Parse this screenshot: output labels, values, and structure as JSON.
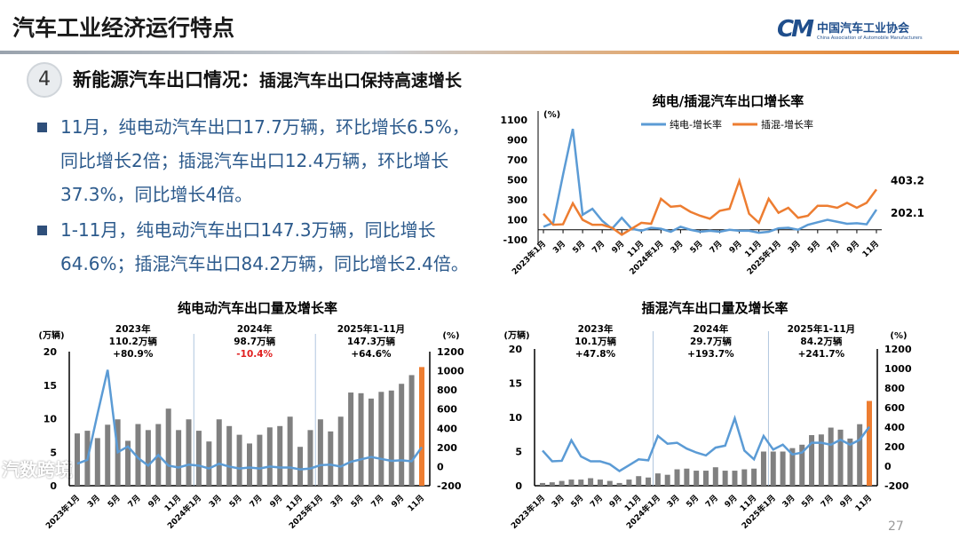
{
  "header": {
    "title": "汽车工业经济运行特点",
    "logo_cn": "中国汽车工业协会",
    "logo_en": "China Association of Automobile Manufacturers",
    "logo_mark": "CM"
  },
  "section": {
    "number": "4",
    "heading_bold": "新能源汽车出口情况：",
    "heading_rest": "插混汽车出口保持高速增长"
  },
  "bullets": [
    "11月，纯电动汽车出口17.7万辆，环比增长6.5%，同比增长2倍；插混汽车出口12.4万辆，环比增长37.3%，同比增长4倍。",
    "1-11月，纯电动汽车出口147.3万辆，同比增长64.6%；插混汽车出口84.2万辆，同比增长2.4倍。"
  ],
  "page_number": "27",
  "watermark": "汽数跨境",
  "colors": {
    "bar": "#808080",
    "bar_highlight": "#ed7d31",
    "bev_line": "#5b9bd5",
    "phev_line": "#ed7d31",
    "negative": "#e02020"
  },
  "chart_data": [
    {
      "id": "growth",
      "type": "line",
      "title": "纯电/插混汽车出口增长率",
      "yunit": "(%)",
      "ylim": [
        -100,
        1100
      ],
      "yticks": [
        -100,
        100,
        300,
        500,
        700,
        900,
        1100
      ],
      "x_tick_labels": [
        "2023年1月",
        "3月",
        "5月",
        "7月",
        "9月",
        "11月",
        "2024年1月",
        "3月",
        "5月",
        "7月",
        "9月",
        "11月",
        "2025年1月",
        "3月",
        "5月",
        "7月",
        "9月",
        "11月"
      ],
      "series": [
        {
          "name": "纯电-增长率",
          "color": "#5b9bd5",
          "values": [
            30,
            70,
            550,
            1010,
            150,
            210,
            90,
            10,
            120,
            10,
            -10,
            20,
            10,
            -20,
            30,
            0,
            -20,
            -10,
            -20,
            0,
            -10,
            -10,
            -30,
            -20,
            15,
            20,
            0,
            50,
            75,
            100,
            80,
            60,
            65,
            55,
            202.1
          ],
          "end_label": "202.1"
        },
        {
          "name": "插混-增长率",
          "color": "#ed7d31",
          "values": [
            160,
            50,
            55,
            265,
            100,
            50,
            50,
            20,
            -50,
            10,
            70,
            60,
            310,
            230,
            240,
            180,
            140,
            110,
            190,
            210,
            490,
            160,
            70,
            310,
            170,
            220,
            120,
            140,
            240,
            240,
            220,
            270,
            220,
            270,
            403.2
          ],
          "end_label": "403.2"
        }
      ]
    },
    {
      "id": "bev",
      "type": "bar+line",
      "title": "纯电动汽车出口量及增长率",
      "yunit_left": "(万辆)",
      "yunit_right": "(%)",
      "ylim_left": [
        0,
        20
      ],
      "yticks_left": [
        0,
        5,
        10,
        15,
        20
      ],
      "ylim_right": [
        -200,
        1200
      ],
      "yticks_right": [
        -200,
        0,
        200,
        400,
        600,
        800,
        1000,
        1200
      ],
      "x_tick_labels": [
        "2023年1月",
        "3月",
        "5月",
        "7月",
        "9月",
        "11月",
        "2024年1月",
        "3月",
        "5月",
        "7月",
        "9月",
        "11月",
        "2025年1月",
        "3月",
        "5月",
        "7月",
        "9月",
        "11月"
      ],
      "bars": [
        7.8,
        8.2,
        7.1,
        9.1,
        9.9,
        6.7,
        9.2,
        8.3,
        9.2,
        11.5,
        8.3,
        9.9,
        8.2,
        6.6,
        9.9,
        8.9,
        7.6,
        6.3,
        7.6,
        8.7,
        8.9,
        10.3,
        5.8,
        8.3,
        9.9,
        8.1,
        10.3,
        13.9,
        13.8,
        13.0,
        14.0,
        14.2,
        15.2,
        16.5,
        17.7
      ],
      "line": [
        30,
        70,
        550,
        1010,
        150,
        210,
        90,
        10,
        120,
        10,
        -10,
        20,
        10,
        -20,
        30,
        0,
        -20,
        -10,
        -20,
        0,
        -10,
        -10,
        -30,
        -20,
        15,
        20,
        0,
        50,
        75,
        100,
        80,
        60,
        65,
        55,
        202.1
      ],
      "annotations": [
        {
          "year": "2023年",
          "volume": "110.2万辆",
          "growth": "+80.9%",
          "negative": false
        },
        {
          "year": "2024年",
          "volume": "98.7万辆",
          "growth": "-10.4%",
          "negative": true
        },
        {
          "year": "2025年1-11月",
          "volume": "147.3万辆",
          "growth": "+64.6%",
          "negative": false
        }
      ]
    },
    {
      "id": "phev",
      "type": "bar+line",
      "title": "插混汽车出口量及增长率",
      "yunit_left": "(万辆)",
      "yunit_right": "(%)",
      "ylim_left": [
        0,
        20
      ],
      "yticks_left": [
        0,
        5,
        10,
        15,
        20
      ],
      "ylim_right": [
        -200,
        1200
      ],
      "yticks_right": [
        -200,
        0,
        200,
        400,
        600,
        800,
        1000,
        1200
      ],
      "x_tick_labels": [
        "2023年1月",
        "3月",
        "5月",
        "7月",
        "9月",
        "11月",
        "2024年1月",
        "3月",
        "5月",
        "7月",
        "9月",
        "11月",
        "2025年1月",
        "3月",
        "5月",
        "7月",
        "9月",
        "11月"
      ],
      "bars": [
        0.4,
        0.5,
        0.7,
        0.9,
        0.9,
        1.1,
        0.9,
        0.7,
        0.4,
        0.9,
        1.4,
        1.2,
        1.8,
        1.6,
        2.4,
        2.5,
        2.2,
        2.2,
        2.7,
        2.2,
        2.2,
        2.4,
        2.5,
        5.0,
        5.0,
        5.0,
        5.5,
        6.0,
        7.4,
        7.5,
        8.5,
        8.2,
        6.9,
        9.0,
        12.4
      ],
      "line": [
        160,
        50,
        55,
        265,
        100,
        50,
        50,
        20,
        -50,
        10,
        70,
        60,
        310,
        230,
        240,
        180,
        140,
        110,
        190,
        210,
        490,
        160,
        70,
        310,
        170,
        220,
        120,
        140,
        240,
        240,
        220,
        270,
        220,
        270,
        403.2
      ],
      "annotations": [
        {
          "year": "2023年",
          "volume": "10.1万辆",
          "growth": "+47.8%",
          "negative": false
        },
        {
          "year": "2024年",
          "volume": "29.7万辆",
          "growth": "+193.7%",
          "negative": false
        },
        {
          "year": "2025年1-11月",
          "volume": "84.2万辆",
          "growth": "+241.7%",
          "negative": false
        }
      ]
    }
  ]
}
